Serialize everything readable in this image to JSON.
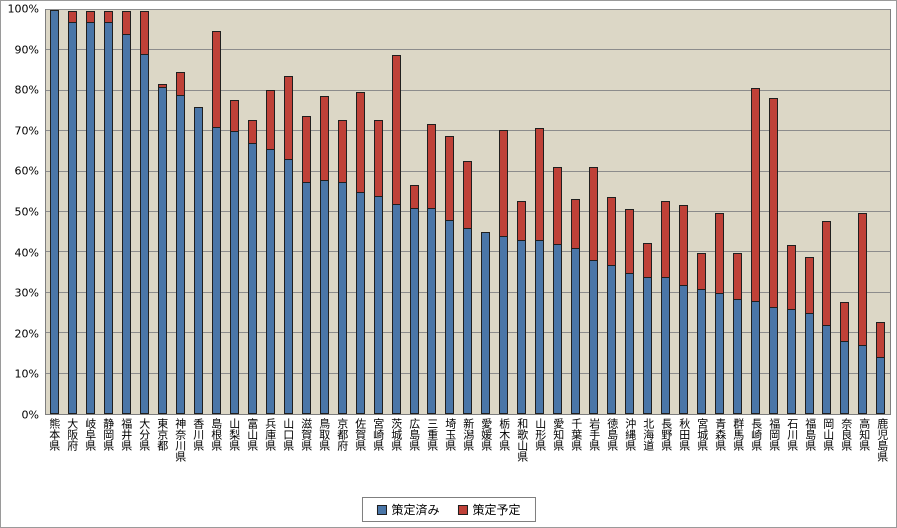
{
  "chart_data": {
    "type": "bar",
    "stacked": true,
    "title": "",
    "xlabel": "",
    "ylabel": "",
    "ylim": [
      0,
      100
    ],
    "grid": true,
    "legend_position": "bottom",
    "plot_background": "#DCD7C6",
    "y_ticks": [
      "0%",
      "10%",
      "20%",
      "30%",
      "40%",
      "50%",
      "60%",
      "70%",
      "80%",
      "90%",
      "100%"
    ],
    "categories": [
      "熊本県",
      "大阪府",
      "岐阜県",
      "静岡県",
      "福井県",
      "大分県",
      "東京都",
      "神奈川県",
      "香川県",
      "島根県",
      "山梨県",
      "富山県",
      "兵庫県",
      "山口県",
      "滋賀県",
      "鳥取県",
      "京都府",
      "佐賀県",
      "宮崎県",
      "茨城県",
      "広島県",
      "三重県",
      "埼玉県",
      "新潟県",
      "愛媛県",
      "栃木県",
      "和歌山県",
      "山形県",
      "愛知県",
      "千葉県",
      "岩手県",
      "徳島県",
      "沖縄県",
      "北海道",
      "長野県",
      "秋田県",
      "宮城県",
      "青森県",
      "群馬県",
      "長崎県",
      "福岡県",
      "石川県",
      "福島県",
      "岡山県",
      "奈良県",
      "高知県",
      "鹿児島県"
    ],
    "series": [
      {
        "name": "策定済み",
        "color": "#4A76A8",
        "values": [
          100,
          97,
          97,
          97,
          94,
          89,
          81,
          79,
          76,
          71,
          70,
          67,
          65.5,
          63,
          57.5,
          58,
          57.5,
          55,
          54,
          52,
          51,
          51,
          48,
          46,
          45,
          44,
          43,
          43,
          42,
          41,
          38,
          37,
          35,
          34,
          34,
          32,
          31,
          30,
          28.5,
          28,
          26.5,
          26,
          25,
          22,
          18,
          17,
          14
        ]
      },
      {
        "name": "策定予定",
        "color": "#BF4138",
        "values": [
          0,
          3,
          3,
          3,
          6,
          11,
          1,
          6,
          0,
          24,
          8,
          6,
          15,
          21,
          16.5,
          21,
          15.5,
          25,
          19,
          37,
          6,
          21,
          21,
          17,
          0,
          26.5,
          10,
          28,
          19.5,
          12.5,
          23.5,
          17,
          16,
          8.5,
          19,
          20,
          9,
          20,
          11.5,
          53,
          52,
          16,
          14,
          26,
          10,
          33,
          9
        ]
      }
    ]
  }
}
